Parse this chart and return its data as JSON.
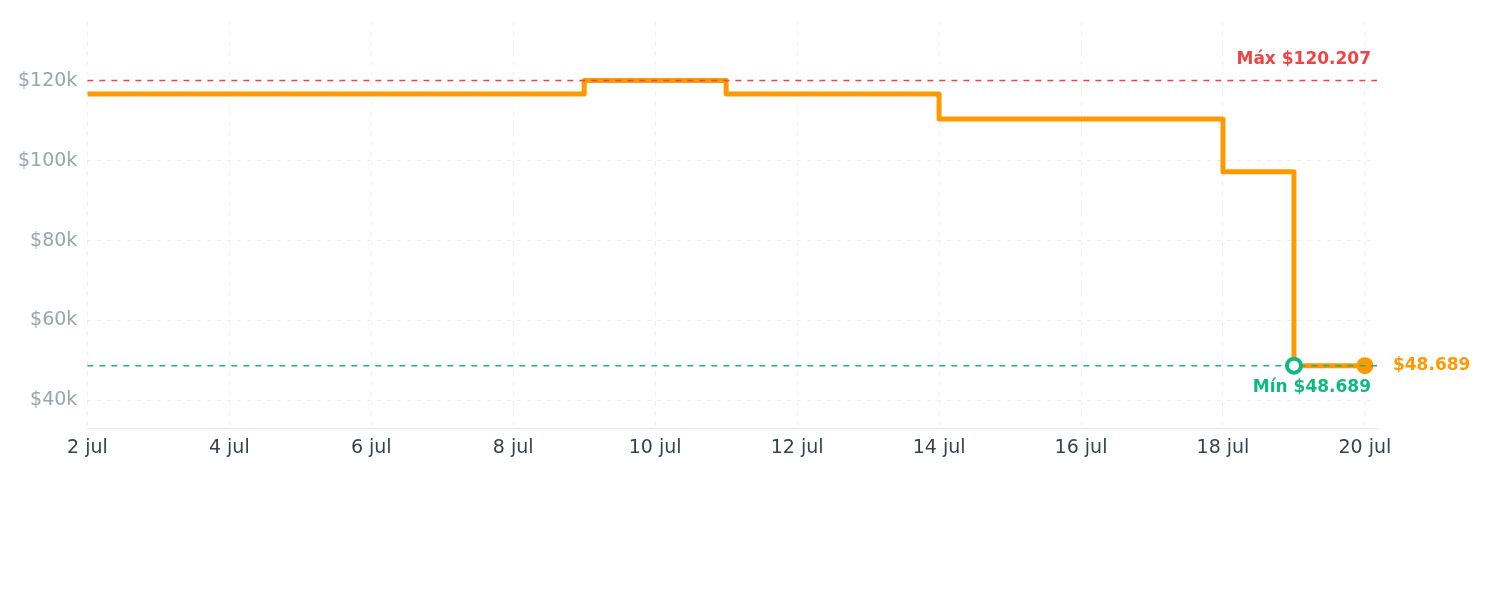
{
  "chart_data": {
    "type": "step",
    "x": [
      "--07-02",
      "--07-09",
      "--07-11",
      "--07-14",
      "--07-18",
      "--07-19",
      "--07-20"
    ],
    "series": [
      {
        "color": "#ff9900",
        "values": [
          116800,
          120207,
          116800,
          110500,
          97300,
          48689,
          48689
        ],
        "value_labels": [
          null,
          null,
          null,
          null,
          null,
          null,
          "$48.689"
        ]
      }
    ],
    "xlim": [
      "--07-02",
      "--07-20"
    ],
    "xticks": [
      {
        "value": "--07-02",
        "label": "2 jul"
      },
      {
        "value": "--07-04",
        "label": "4 jul"
      },
      {
        "value": "--07-06",
        "label": "6 jul"
      },
      {
        "value": "--07-08",
        "label": "8 jul"
      },
      {
        "value": "--07-10",
        "label": "10 jul"
      },
      {
        "value": "--07-12",
        "label": "12 jul"
      },
      {
        "value": "--07-14",
        "label": "14 jul"
      },
      {
        "value": "--07-16",
        "label": "16 jul"
      },
      {
        "value": "--07-18",
        "label": "18 jul"
      },
      {
        "value": "--07-20",
        "label": "20 jul"
      }
    ],
    "ylim": [
      33000,
      135000
    ],
    "yticks": [
      {
        "value": 40000,
        "label": "$40k"
      },
      {
        "value": 60000,
        "label": "$60k"
      },
      {
        "value": 80000,
        "label": "$80k"
      },
      {
        "value": 100000,
        "label": "$100k"
      },
      {
        "value": 120000,
        "label": "$120k"
      }
    ],
    "ref_lines": [
      {
        "axis": "y",
        "value": 120207,
        "label": "Máx $120.207",
        "color": "#ef4444",
        "line_style": "dashed"
      },
      {
        "axis": "y",
        "value": 48689,
        "label": "Mín $48.689",
        "color": "#10b981",
        "line_style": "dashed"
      }
    ],
    "grid": true,
    "legend": false,
    "marker": "none",
    "line_style": "solid"
  }
}
